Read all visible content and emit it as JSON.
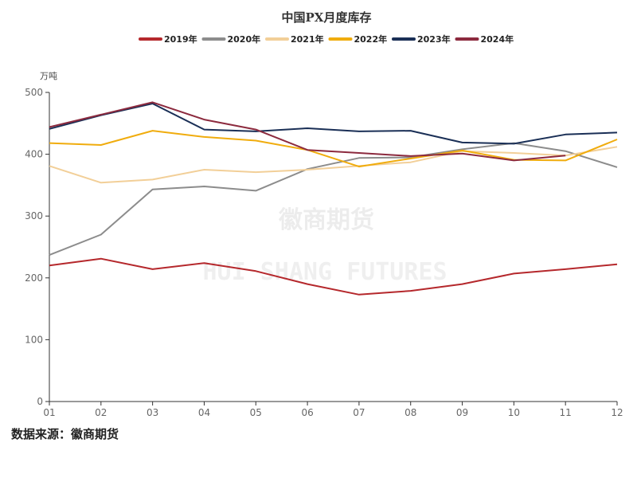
{
  "chart_data": {
    "type": "line",
    "title": "中国PX月度库存",
    "ylabel": "万吨",
    "ylim": [
      0,
      500
    ],
    "yticks": [
      0,
      100,
      200,
      300,
      400,
      500
    ],
    "categories": [
      "01",
      "02",
      "03",
      "04",
      "05",
      "06",
      "07",
      "08",
      "09",
      "10",
      "11",
      "12"
    ],
    "legend_position": "top-center",
    "grid": false,
    "series": [
      {
        "name": "2019年",
        "color": "#b5282c",
        "values": [
          220,
          231,
          214,
          224,
          211,
          190,
          173,
          179,
          190,
          207,
          214,
          222
        ]
      },
      {
        "name": "2020年",
        "color": "#8c8c8c",
        "values": [
          237,
          270,
          343,
          348,
          341,
          376,
          394,
          395,
          408,
          418,
          405,
          379
        ]
      },
      {
        "name": "2021年",
        "color": "#f2cf98",
        "values": [
          381,
          354,
          359,
          375,
          371,
          375,
          381,
          387,
          405,
          402,
          398,
          412
        ]
      },
      {
        "name": "2022年",
        "color": "#f0ac0d",
        "values": [
          418,
          415,
          438,
          428,
          422,
          407,
          380,
          393,
          406,
          391,
          390,
          424
        ]
      },
      {
        "name": "2023年",
        "color": "#1a2f56",
        "values": [
          441,
          463,
          482,
          440,
          437,
          442,
          437,
          438,
          419,
          417,
          432,
          435
        ]
      },
      {
        "name": "2024年",
        "color": "#8c2a3e",
        "values": [
          444,
          464,
          484,
          456,
          440,
          407,
          402,
          397,
          401,
          390,
          398,
          null
        ]
      }
    ]
  },
  "watermark": {
    "cn": "徽商期货",
    "en": "HUI SHANG FUTURES"
  },
  "source": "数据来源：徽商期货"
}
